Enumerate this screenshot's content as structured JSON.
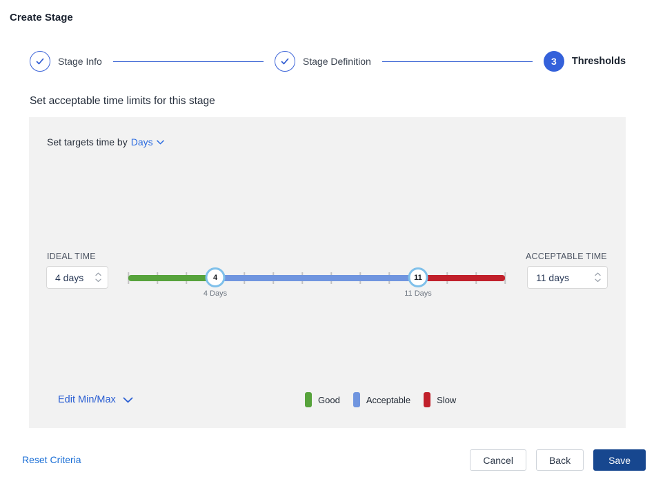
{
  "page": {
    "title": "Create Stage"
  },
  "stepper": {
    "steps": [
      {
        "label": "Stage Info",
        "state": "complete"
      },
      {
        "label": "Stage Definition",
        "state": "complete"
      },
      {
        "label": "Thresholds",
        "state": "current",
        "number": "3"
      }
    ]
  },
  "section": {
    "heading": "Set acceptable time limits for this stage"
  },
  "panel": {
    "target_prefix": "Set targets time by",
    "target_unit": "Days",
    "ideal": {
      "label": "IDEAL TIME",
      "value": "4 days"
    },
    "acceptable": {
      "label": "ACCEPTABLE TIME",
      "value": "11 days"
    },
    "edit_minmax_label": "Edit Min/Max",
    "legend": [
      {
        "label": "Good",
        "color": "#57a33c"
      },
      {
        "label": "Acceptable",
        "color": "#7095df"
      },
      {
        "label": "Slow",
        "color": "#c1202b"
      }
    ]
  },
  "slider": {
    "min": 1,
    "max": 14,
    "ideal_value": 4,
    "acceptable_value": 11,
    "ideal_handle_label": "4",
    "acceptable_handle_label": "11",
    "ideal_caption": "4 Days",
    "acceptable_caption": "11 Days",
    "colors": {
      "good": "#57a33c",
      "acceptable": "#7095df",
      "slow": "#c1202b"
    },
    "handle_border_color": "#7fc0ea"
  },
  "footer": {
    "reset_label": "Reset Criteria",
    "cancel_label": "Cancel",
    "back_label": "Back",
    "save_label": "Save"
  },
  "colors": {
    "accent_blue": "#2e5ad1",
    "step_active_bg": "#3461da",
    "link_blue": "#2a6be0",
    "save_bg": "#17478f",
    "panel_bg": "#f2f2f2"
  }
}
